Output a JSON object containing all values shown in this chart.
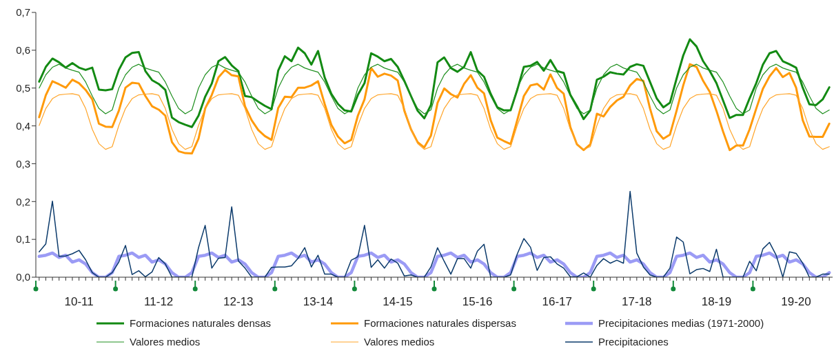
{
  "chart_data": {
    "type": "line",
    "marker": "none",
    "legend": "bottom",
    "categories": [
      null,
      null,
      null,
      null,
      null,
      null,
      "10-11",
      null,
      null,
      null,
      null,
      null,
      null,
      null,
      null,
      null,
      null,
      null,
      "11-12",
      null,
      null,
      null,
      null,
      null,
      null,
      null,
      null,
      null,
      null,
      null,
      "12-13",
      null,
      null,
      null,
      null,
      null,
      null,
      null,
      null,
      null,
      null,
      null,
      "13-14",
      null,
      null,
      null,
      null,
      null,
      null,
      null,
      null,
      null,
      null,
      null,
      "14-15",
      null,
      null,
      null,
      null,
      null,
      null,
      null,
      null,
      null,
      null,
      null,
      "15-16",
      null,
      null,
      null,
      null,
      null,
      null,
      null,
      null,
      null,
      null,
      null,
      "16-17",
      null,
      null,
      null,
      null,
      null,
      null,
      null,
      null,
      null,
      null,
      null,
      "17-18",
      null,
      null,
      null,
      null,
      null,
      null,
      null,
      null,
      null,
      null,
      null,
      "18-19",
      null,
      null,
      null,
      null,
      null,
      null,
      null,
      null,
      null,
      null,
      null,
      "19-20",
      null,
      null,
      null,
      null,
      null
    ],
    "ylim": [
      0,
      0.7
    ],
    "yticks": [
      {
        "value": 0,
        "label": "0,0"
      },
      {
        "value": 0.1,
        "label": "0,1"
      },
      {
        "value": 0.2,
        "label": "0,2"
      },
      {
        "value": 0.3,
        "label": "0,3"
      },
      {
        "value": 0.4,
        "label": "0,4"
      },
      {
        "value": 0.5,
        "label": "0,5"
      },
      {
        "value": 0.6,
        "label": "0,6"
      },
      {
        "value": 0.7,
        "label": "0,7"
      }
    ],
    "series": [
      {
        "name": "Formaciones naturales densas",
        "color": "#138a13",
        "values": [
          0.517,
          0.556,
          0.578,
          0.568,
          0.554,
          0.566,
          0.554,
          0.548,
          0.554,
          0.496,
          0.494,
          0.497,
          0.548,
          0.581,
          0.593,
          0.595,
          0.545,
          0.521,
          0.511,
          0.495,
          0.422,
          0.41,
          0.403,
          0.397,
          0.427,
          0.477,
          0.512,
          0.571,
          0.582,
          0.56,
          0.545,
          0.479,
          0.476,
          0.464,
          0.453,
          0.444,
          0.546,
          0.584,
          0.571,
          0.607,
          0.592,
          0.562,
          0.598,
          0.528,
          0.485,
          0.458,
          0.441,
          0.438,
          0.482,
          0.513,
          0.592,
          0.583,
          0.571,
          0.577,
          0.556,
          0.519,
          0.479,
          0.44,
          0.42,
          0.455,
          0.568,
          0.581,
          0.553,
          0.543,
          0.556,
          0.595,
          0.546,
          0.53,
          0.485,
          0.449,
          0.441,
          0.441,
          0.495,
          0.556,
          0.559,
          0.569,
          0.546,
          0.574,
          0.545,
          0.54,
          0.482,
          0.452,
          0.418,
          0.441,
          0.522,
          0.53,
          0.542,
          0.538,
          0.536,
          0.556,
          0.563,
          0.559,
          0.516,
          0.473,
          0.449,
          0.461,
          0.525,
          0.586,
          0.629,
          0.61,
          0.571,
          0.545,
          0.513,
          0.467,
          0.421,
          0.429,
          0.429,
          0.473,
          0.513,
          0.562,
          0.592,
          0.598,
          0.571,
          0.563,
          0.554,
          0.501,
          0.457,
          0.455,
          0.47,
          0.502
        ]
      },
      {
        "name": "Formaciones naturales dispersas",
        "color": "#ff9a0a",
        "values": [
          0.423,
          0.481,
          0.518,
          0.51,
          0.501,
          0.522,
          0.513,
          0.495,
          0.47,
          0.406,
          0.398,
          0.397,
          0.44,
          0.501,
          0.514,
          0.512,
          0.479,
          0.452,
          0.443,
          0.427,
          0.357,
          0.333,
          0.328,
          0.327,
          0.366,
          0.446,
          0.482,
          0.528,
          0.548,
          0.534,
          0.531,
          0.452,
          0.415,
          0.389,
          0.373,
          0.363,
          0.447,
          0.477,
          0.476,
          0.501,
          0.501,
          0.507,
          0.518,
          0.458,
          0.403,
          0.372,
          0.354,
          0.363,
          0.427,
          0.47,
          0.553,
          0.53,
          0.538,
          0.533,
          0.52,
          0.44,
          0.391,
          0.357,
          0.343,
          0.374,
          0.461,
          0.499,
          0.484,
          0.475,
          0.511,
          0.534,
          0.501,
          0.486,
          0.415,
          0.369,
          0.36,
          0.352,
          0.415,
          0.479,
          0.507,
          0.511,
          0.496,
          0.536,
          0.5,
          0.485,
          0.397,
          0.351,
          0.336,
          0.351,
          0.432,
          0.425,
          0.45,
          0.467,
          0.477,
          0.507,
          0.524,
          0.519,
          0.446,
          0.386,
          0.366,
          0.377,
          0.44,
          0.507,
          0.563,
          0.556,
          0.519,
          0.49,
          0.44,
          0.385,
          0.336,
          0.348,
          0.348,
          0.391,
          0.446,
          0.498,
          0.531,
          0.553,
          0.529,
          0.54,
          0.501,
          0.415,
          0.372,
          0.371,
          0.371,
          0.406
        ]
      },
      {
        "name": "Precipitaciones medias (1971-2000)",
        "color": "#9b9bf5",
        "values": [
          0.055,
          0.058,
          0.064,
          0.052,
          0.058,
          0.04,
          0.046,
          0.035,
          0.012,
          0,
          0,
          0.012,
          0.055,
          0.058,
          0.064,
          0.052,
          0.058,
          0.04,
          0.046,
          0.035,
          0.012,
          0,
          0,
          0.012,
          0.055,
          0.058,
          0.064,
          0.052,
          0.058,
          0.04,
          0.046,
          0.035,
          0.012,
          0,
          0,
          0.012,
          0.055,
          0.058,
          0.064,
          0.052,
          0.058,
          0.04,
          0.046,
          0.035,
          0.012,
          0,
          0,
          0.012,
          0.055,
          0.058,
          0.064,
          0.052,
          0.058,
          0.04,
          0.046,
          0.035,
          0.012,
          0,
          0,
          0.012,
          0.055,
          0.058,
          0.064,
          0.052,
          0.058,
          0.04,
          0.046,
          0.035,
          0.012,
          0,
          0,
          0.012,
          0.055,
          0.058,
          0.064,
          0.052,
          0.058,
          0.04,
          0.046,
          0.035,
          0.012,
          0,
          0,
          0.012,
          0.055,
          0.058,
          0.064,
          0.052,
          0.058,
          0.04,
          0.046,
          0.035,
          0.012,
          0,
          0,
          0.012,
          0.055,
          0.058,
          0.064,
          0.052,
          0.058,
          0.04,
          0.046,
          0.035,
          0.012,
          0,
          0,
          0.012,
          0.055,
          0.058,
          0.064,
          0.052,
          0.058,
          0.04,
          0.046,
          0.035,
          0.012,
          0,
          0,
          0.012
        ]
      },
      {
        "name": "Valores medios",
        "color": "#1f8f1f",
        "values": [
          0.5,
          0.535,
          0.555,
          0.563,
          0.553,
          0.547,
          0.542,
          0.516,
          0.479,
          0.446,
          0.432,
          0.442,
          0.5,
          0.535,
          0.555,
          0.563,
          0.553,
          0.547,
          0.542,
          0.516,
          0.479,
          0.446,
          0.432,
          0.442,
          0.5,
          0.535,
          0.555,
          0.563,
          0.553,
          0.547,
          0.542,
          0.516,
          0.479,
          0.446,
          0.432,
          0.442,
          0.5,
          0.535,
          0.555,
          0.563,
          0.553,
          0.547,
          0.542,
          0.516,
          0.479,
          0.446,
          0.432,
          0.442,
          0.5,
          0.535,
          0.555,
          0.563,
          0.553,
          0.547,
          0.542,
          0.516,
          0.479,
          0.446,
          0.432,
          0.442,
          0.5,
          0.535,
          0.555,
          0.563,
          0.553,
          0.547,
          0.542,
          0.516,
          0.479,
          0.446,
          0.432,
          0.442,
          0.5,
          0.535,
          0.555,
          0.563,
          0.553,
          0.547,
          0.542,
          0.516,
          0.479,
          0.446,
          0.432,
          0.442,
          0.5,
          0.535,
          0.555,
          0.563,
          0.553,
          0.547,
          0.542,
          0.516,
          0.479,
          0.446,
          0.432,
          0.442,
          0.5,
          0.535,
          0.555,
          0.563,
          0.553,
          0.547,
          0.542,
          0.516,
          0.479,
          0.446,
          0.432,
          0.442,
          0.5,
          0.535,
          0.555,
          0.563,
          0.553,
          0.547,
          0.542,
          0.516,
          0.479,
          0.446,
          0.432,
          0.442
        ]
      },
      {
        "name": "Valores medios",
        "color": "#ffa52a",
        "values": [
          0.401,
          0.446,
          0.472,
          0.482,
          0.484,
          0.485,
          0.481,
          0.446,
          0.391,
          0.353,
          0.338,
          0.345,
          0.401,
          0.446,
          0.472,
          0.482,
          0.484,
          0.485,
          0.481,
          0.446,
          0.391,
          0.353,
          0.338,
          0.345,
          0.401,
          0.446,
          0.472,
          0.482,
          0.484,
          0.485,
          0.481,
          0.446,
          0.391,
          0.353,
          0.338,
          0.345,
          0.401,
          0.446,
          0.472,
          0.482,
          0.484,
          0.485,
          0.481,
          0.446,
          0.391,
          0.353,
          0.338,
          0.345,
          0.401,
          0.446,
          0.472,
          0.482,
          0.484,
          0.485,
          0.481,
          0.446,
          0.391,
          0.353,
          0.338,
          0.345,
          0.401,
          0.446,
          0.472,
          0.482,
          0.484,
          0.485,
          0.481,
          0.446,
          0.391,
          0.353,
          0.338,
          0.345,
          0.401,
          0.446,
          0.472,
          0.482,
          0.484,
          0.485,
          0.481,
          0.446,
          0.391,
          0.353,
          0.338,
          0.345,
          0.401,
          0.446,
          0.472,
          0.482,
          0.484,
          0.485,
          0.481,
          0.446,
          0.391,
          0.353,
          0.338,
          0.345,
          0.401,
          0.446,
          0.472,
          0.482,
          0.484,
          0.485,
          0.481,
          0.446,
          0.391,
          0.353,
          0.338,
          0.345,
          0.401,
          0.446,
          0.472,
          0.482,
          0.484,
          0.485,
          0.481,
          0.446,
          0.391,
          0.353,
          0.338,
          0.345
        ]
      },
      {
        "name": "Precipitaciones",
        "color": "#0b3a6b",
        "values": [
          0.067,
          0.088,
          0.201,
          0.055,
          0.056,
          0.062,
          0.071,
          0.046,
          0.012,
          0,
          0,
          0.012,
          0.04,
          0.084,
          0.007,
          0.017,
          0.001,
          0.014,
          0.052,
          0.035,
          0,
          0,
          0,
          0,
          0.078,
          0.137,
          0.024,
          0.05,
          0.052,
          0.186,
          0.043,
          0.024,
          0,
          0,
          0,
          0.026,
          0.027,
          0.027,
          0.03,
          0.05,
          0.078,
          0.027,
          0.058,
          0.008,
          0.008,
          0,
          0,
          0.045,
          0.054,
          0.137,
          0.026,
          0.046,
          0.024,
          0.048,
          0.037,
          0.003,
          0.006,
          0,
          0,
          0.027,
          0.078,
          0.042,
          0.008,
          0.049,
          0.049,
          0.024,
          0.069,
          0.087,
          0,
          0,
          0,
          0.006,
          0.061,
          0.102,
          0.079,
          0.018,
          0.052,
          0.054,
          0.035,
          0.024,
          0.001,
          0.001,
          0.011,
          0,
          0.031,
          0.049,
          0.037,
          0.045,
          0.037,
          0.227,
          0.064,
          0.027,
          0.006,
          0,
          0,
          0.024,
          0.106,
          0.093,
          0.009,
          0.02,
          0.023,
          0.015,
          0.074,
          0,
          0,
          0,
          0,
          0.042,
          0.017,
          0.075,
          0.092,
          0.058,
          0,
          0.067,
          0.063,
          0.037,
          0,
          0,
          0.008,
          0.008
        ]
      }
    ]
  }
}
